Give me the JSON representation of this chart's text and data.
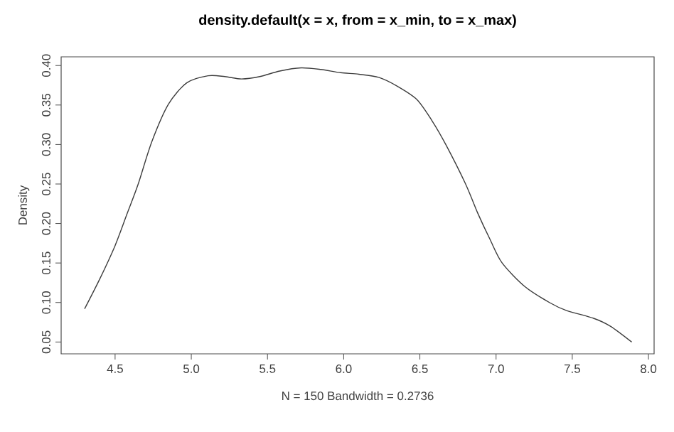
{
  "chart_data": {
    "type": "line",
    "title": "density.default(x = x, from = x_min, to = x_max)",
    "xlabel": "N = 150   Bandwidth = 0.2736",
    "ylabel": "Density",
    "x": [
      4.3,
      4.4,
      4.5,
      4.58,
      4.65,
      4.74,
      4.85,
      4.97,
      5.11,
      5.22,
      5.33,
      5.45,
      5.58,
      5.72,
      5.85,
      5.98,
      6.1,
      6.23,
      6.35,
      6.48,
      6.58,
      6.67,
      6.8,
      6.88,
      6.96,
      7.04,
      7.19,
      7.35,
      7.46,
      7.64,
      7.75,
      7.89
    ],
    "series": [
      {
        "color": "#3c3c3c",
        "values": [
          0.092,
          0.13,
          0.172,
          0.213,
          0.249,
          0.303,
          0.351,
          0.378,
          0.387,
          0.386,
          0.383,
          0.386,
          0.393,
          0.397,
          0.395,
          0.391,
          0.389,
          0.385,
          0.374,
          0.357,
          0.33,
          0.3,
          0.25,
          0.213,
          0.18,
          0.15,
          0.12,
          0.1,
          0.09,
          0.08,
          0.07,
          0.05
        ]
      }
    ],
    "xlim": [
      4.146,
      8.037
    ],
    "ylim": [
      0.035,
      0.411
    ],
    "xticks": [
      {
        "value": 4.5,
        "label": "4.5"
      },
      {
        "value": 5.0,
        "label": "5.0"
      },
      {
        "value": 5.5,
        "label": "5.5"
      },
      {
        "value": 6.0,
        "label": "6.0"
      },
      {
        "value": 6.5,
        "label": "6.5"
      },
      {
        "value": 7.0,
        "label": "7.0"
      },
      {
        "value": 7.5,
        "label": "7.5"
      },
      {
        "value": 8.0,
        "label": "8.0"
      }
    ],
    "yticks": [
      {
        "value": 0.05,
        "label": "0.05"
      },
      {
        "value": 0.1,
        "label": "0.10"
      },
      {
        "value": 0.15,
        "label": "0.15"
      },
      {
        "value": 0.2,
        "label": "0.20"
      },
      {
        "value": 0.25,
        "label": "0.25"
      },
      {
        "value": 0.3,
        "label": "0.30"
      },
      {
        "value": 0.35,
        "label": "0.35"
      },
      {
        "value": 0.4,
        "label": "0.40"
      }
    ],
    "marker": "none",
    "line_style": "solid"
  }
}
